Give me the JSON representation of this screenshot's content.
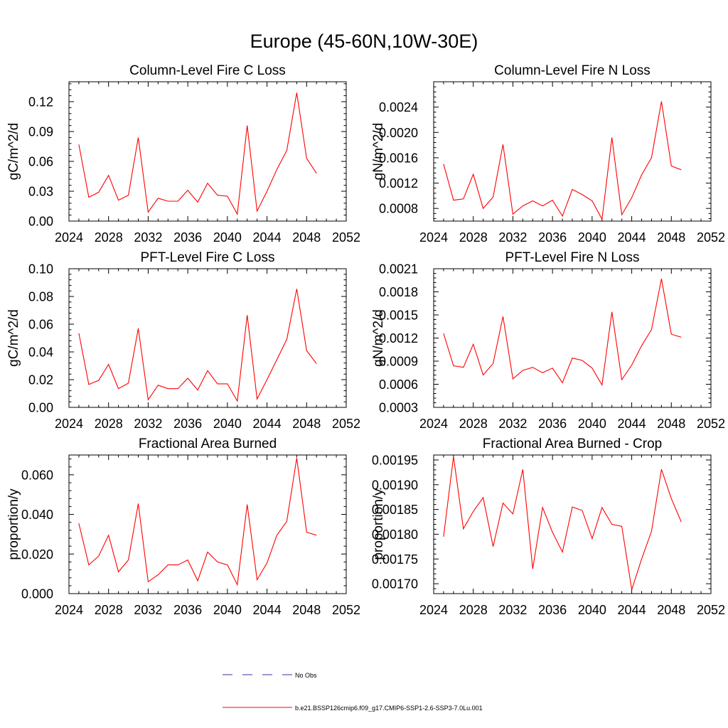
{
  "figure_title": "Europe (45-60N,10W-30E)",
  "legend": {
    "obs_label": "No Obs",
    "model_label": "b.e21.BSSP126cmip6.f09_g17.CMIP6-SSP1-2.6-SSP3-7.0Lu.001",
    "obs_color": "#3333aa",
    "model_color": "#ff0000"
  },
  "chart_data": [
    {
      "type": "line",
      "title": "Column-Level Fire C Loss",
      "ylabel": "gC/m^2/d",
      "xlim": [
        2024,
        2052
      ],
      "ylim": [
        0,
        0.14
      ],
      "xticks": [
        "2024",
        "2028",
        "2032",
        "2036",
        "2040",
        "2044",
        "2048",
        "2052"
      ],
      "yticks": [
        "0.00",
        "0.03",
        "0.06",
        "0.09",
        "0.12"
      ],
      "series": [
        {
          "name": "b.e21.BSSP126cmip6.f09_g17.CMIP6-SSP1-2.6-SSP3-7.0Lu.001",
          "x": [
            2025,
            2026,
            2027,
            2028,
            2029,
            2030,
            2031,
            2032,
            2033,
            2034,
            2035,
            2036,
            2037,
            2038,
            2039,
            2040,
            2041,
            2042,
            2043,
            2044,
            2045,
            2046,
            2047,
            2048,
            2049
          ],
          "values": [
            0.077,
            0.024,
            0.029,
            0.046,
            0.021,
            0.026,
            0.084,
            0.009,
            0.023,
            0.02,
            0.02,
            0.031,
            0.019,
            0.038,
            0.026,
            0.025,
            0.007,
            0.096,
            0.01,
            0.03,
            0.052,
            0.071,
            0.129,
            0.063,
            0.048
          ]
        }
      ]
    },
    {
      "type": "line",
      "title": "Column-Level Fire N Loss",
      "ylabel": "gN/m^2/d",
      "xlim": [
        2024,
        2052
      ],
      "ylim": [
        0.0006,
        0.0028
      ],
      "xticks": [
        "2024",
        "2028",
        "2032",
        "2036",
        "2040",
        "2044",
        "2048",
        "2052"
      ],
      "yticks": [
        "0.0008",
        "0.0012",
        "0.0016",
        "0.0020",
        "0.0024"
      ],
      "series": [
        {
          "name": "b.e21.BSSP126cmip6.f09_g17.CMIP6-SSP1-2.6-SSP3-7.0Lu.001",
          "x": [
            2025,
            2026,
            2027,
            2028,
            2029,
            2030,
            2031,
            2032,
            2033,
            2034,
            2035,
            2036,
            2037,
            2038,
            2039,
            2040,
            2041,
            2042,
            2043,
            2044,
            2045,
            2046,
            2047,
            2048,
            2049
          ],
          "values": [
            0.0015,
            0.00093,
            0.00095,
            0.00134,
            0.0008,
            0.00098,
            0.00181,
            0.00071,
            0.00084,
            0.00092,
            0.00084,
            0.00093,
            0.00068,
            0.0011,
            0.00102,
            0.00092,
            0.00063,
            0.00192,
            0.0007,
            0.00097,
            0.00133,
            0.0016,
            0.00249,
            0.00147,
            0.00141
          ]
        }
      ]
    },
    {
      "type": "line",
      "title": "PFT-Level Fire C Loss",
      "ylabel": "gC/m^2/d",
      "xlim": [
        2024,
        2052
      ],
      "ylim": [
        0,
        0.1
      ],
      "xticks": [
        "2024",
        "2028",
        "2032",
        "2036",
        "2040",
        "2044",
        "2048",
        "2052"
      ],
      "yticks": [
        "0.00",
        "0.02",
        "0.04",
        "0.06",
        "0.08",
        "0.10"
      ],
      "series": [
        {
          "name": "b.e21.BSSP126cmip6.f09_g17.CMIP6-SSP1-2.6-SSP3-7.0Lu.001",
          "x": [
            2025,
            2026,
            2027,
            2028,
            2029,
            2030,
            2031,
            2032,
            2033,
            2034,
            2035,
            2036,
            2037,
            2038,
            2039,
            2040,
            2041,
            2042,
            2043,
            2044,
            2045,
            2046,
            2047,
            2048,
            2049
          ],
          "values": [
            0.0535,
            0.0165,
            0.0195,
            0.031,
            0.0135,
            0.0175,
            0.057,
            0.0055,
            0.016,
            0.0135,
            0.0135,
            0.021,
            0.0125,
            0.0265,
            0.017,
            0.017,
            0.0045,
            0.0665,
            0.006,
            0.02,
            0.0345,
            0.049,
            0.0855,
            0.041,
            0.0315
          ]
        }
      ]
    },
    {
      "type": "line",
      "title": "PFT-Level Fire N Loss",
      "ylabel": "gN/m^2/d",
      "xlim": [
        2024,
        2052
      ],
      "ylim": [
        0.0003,
        0.0021
      ],
      "xticks": [
        "2024",
        "2028",
        "2032",
        "2036",
        "2040",
        "2044",
        "2048",
        "2052"
      ],
      "yticks": [
        "0.0003",
        "0.0006",
        "0.0009",
        "0.0012",
        "0.0015",
        "0.0018",
        "0.0021"
      ],
      "series": [
        {
          "name": "b.e21.BSSP126cmip6.f09_g17.CMIP6-SSP1-2.6-SSP3-7.0Lu.001",
          "x": [
            2025,
            2026,
            2027,
            2028,
            2029,
            2030,
            2031,
            2032,
            2033,
            2034,
            2035,
            2036,
            2037,
            2038,
            2039,
            2040,
            2041,
            2042,
            2043,
            2044,
            2045,
            2046,
            2047,
            2048,
            2049
          ],
          "values": [
            0.00126,
            0.00084,
            0.00082,
            0.00112,
            0.00072,
            0.00087,
            0.00148,
            0.00067,
            0.00078,
            0.00082,
            0.00075,
            0.00081,
            0.00062,
            0.00094,
            0.00091,
            0.00081,
            0.00059,
            0.00154,
            0.00066,
            0.00085,
            0.0011,
            0.00131,
            0.00197,
            0.00125,
            0.00121
          ]
        }
      ]
    },
    {
      "type": "line",
      "title": "Fractional Area Burned",
      "ylabel": "proportion/y",
      "xlim": [
        2024,
        2052
      ],
      "ylim": [
        0,
        0.07
      ],
      "xticks": [
        "2024",
        "2028",
        "2032",
        "2036",
        "2040",
        "2044",
        "2048",
        "2052"
      ],
      "yticks": [
        "0.000",
        "0.020",
        "0.040",
        "0.060"
      ],
      "series": [
        {
          "name": "b.e21.BSSP126cmip6.f09_g17.CMIP6-SSP1-2.6-SSP3-7.0Lu.001",
          "x": [
            2025,
            2026,
            2027,
            2028,
            2029,
            2030,
            2031,
            2032,
            2033,
            2034,
            2035,
            2036,
            2037,
            2038,
            2039,
            2040,
            2041,
            2042,
            2043,
            2044,
            2045,
            2046,
            2047,
            2048,
            2049
          ],
          "values": [
            0.0355,
            0.0145,
            0.019,
            0.0295,
            0.011,
            0.017,
            0.0455,
            0.006,
            0.0095,
            0.0145,
            0.0145,
            0.017,
            0.0065,
            0.021,
            0.016,
            0.0145,
            0.0045,
            0.045,
            0.007,
            0.0155,
            0.0295,
            0.0365,
            0.0685,
            0.031,
            0.0295
          ]
        }
      ]
    },
    {
      "type": "line",
      "title": "Fractional Area Burned - Crop",
      "ylabel": "proportion/y",
      "xlim": [
        2024,
        2052
      ],
      "ylim": [
        0.00168,
        0.00196
      ],
      "xticks": [
        "2024",
        "2028",
        "2032",
        "2036",
        "2040",
        "2044",
        "2048",
        "2052"
      ],
      "yticks": [
        "0.00170",
        "0.00175",
        "0.00180",
        "0.00185",
        "0.00190",
        "0.00195"
      ],
      "series": [
        {
          "name": "b.e21.BSSP126cmip6.f09_g17.CMIP6-SSP1-2.6-SSP3-7.0Lu.001",
          "x": [
            2025,
            2026,
            2027,
            2028,
            2029,
            2030,
            2031,
            2032,
            2033,
            2034,
            2035,
            2036,
            2037,
            2038,
            2039,
            2040,
            2041,
            2042,
            2043,
            2044,
            2045,
            2046,
            2047,
            2048,
            2049
          ],
          "values": [
            0.001795,
            0.001957,
            0.001811,
            0.001846,
            0.001874,
            0.001775,
            0.001863,
            0.001841,
            0.001931,
            0.00173,
            0.001854,
            0.001804,
            0.001764,
            0.001855,
            0.001848,
            0.001791,
            0.001854,
            0.00182,
            0.001816,
            0.001688,
            0.00175,
            0.001806,
            0.001931,
            0.001872,
            0.001825
          ]
        }
      ]
    }
  ]
}
